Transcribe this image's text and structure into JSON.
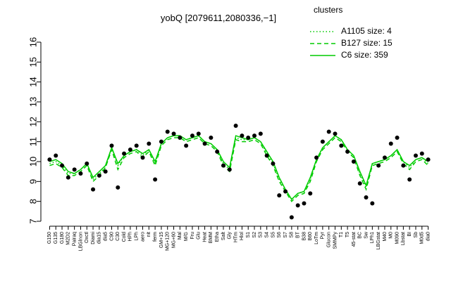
{
  "chart_data": {
    "type": "line",
    "title": "yobQ [2079611,2080336,−1]",
    "legend_title": "clusters",
    "color": "#00cc00",
    "point_color": "#000000",
    "categories": [
      "G150",
      "G135",
      "G180",
      "M2D2",
      "Pairaq",
      "LBGlnon",
      "Oxctl",
      "Diami",
      "dia15",
      "dia5",
      "C90",
      "C30",
      "Cold",
      "HPh",
      "LPh",
      "aero",
      "nit",
      "ferm",
      "GM+15",
      "MG+120",
      "MG+60",
      "Mal",
      "M/G",
      "Fru",
      "Glu",
      "Heat",
      "BMM",
      "Etha",
      "Salt",
      "Gly",
      "HTm",
      "Hlol",
      "S1",
      "S2",
      "S3",
      "S4",
      "S5",
      "S6",
      "S7",
      "S8",
      "BT",
      "B38",
      "B60",
      "LoTm",
      "Pyr",
      "Glucon",
      "SMMPy",
      "T1",
      "T5",
      "45-stat",
      "BC",
      "Sw",
      "LPh1",
      "LBGstat",
      "M40",
      "M0",
      "M090",
      "Lbstat",
      "BI",
      "Sb",
      "M0d5",
      "dia0"
    ],
    "series": [
      {
        "name": "A1105 size: 4",
        "dash": "dotted",
        "values": [
          9.9,
          10.0,
          9.8,
          9.4,
          9.4,
          9.6,
          9.9,
          9.1,
          9.4,
          9.7,
          10.7,
          9.8,
          10.3,
          10.5,
          10.6,
          10.3,
          10.6,
          9.9,
          10.9,
          11.2,
          11.3,
          11.3,
          11.1,
          11.2,
          11.3,
          11.0,
          10.9,
          10.6,
          9.9,
          9.6,
          11.2,
          11.1,
          11.1,
          11.2,
          11.0,
          10.4,
          9.9,
          9.1,
          8.6,
          8.1,
          8.4,
          8.5,
          9.1,
          10.1,
          10.7,
          11.0,
          11.3,
          11.1,
          10.6,
          10.3,
          9.4,
          8.7,
          9.9,
          10.0,
          10.1,
          10.3,
          10.6,
          10.0,
          9.7,
          10.1,
          10.2,
          9.9
        ]
      },
      {
        "name": "B127 size: 15",
        "dash": "dashed",
        "values": [
          9.8,
          9.9,
          9.7,
          9.3,
          9.3,
          9.5,
          9.8,
          9.0,
          9.3,
          9.7,
          10.6,
          9.6,
          10.2,
          10.4,
          10.5,
          10.2,
          10.5,
          9.8,
          10.8,
          11.1,
          11.2,
          11.2,
          11.0,
          11.1,
          11.2,
          10.9,
          10.8,
          10.5,
          9.8,
          9.5,
          11.1,
          11.0,
          11.0,
          11.1,
          10.9,
          10.3,
          9.8,
          9.0,
          8.5,
          8.0,
          8.3,
          8.4,
          9.0,
          10.0,
          10.6,
          10.9,
          11.2,
          11.0,
          10.5,
          10.2,
          9.3,
          8.6,
          9.8,
          9.9,
          10.0,
          10.2,
          10.5,
          9.9,
          9.6,
          10.0,
          10.1,
          9.8
        ]
      },
      {
        "name": "C6 size: 359",
        "dash": "solid",
        "values": [
          10.0,
          10.1,
          9.9,
          9.5,
          9.4,
          9.6,
          9.9,
          9.2,
          9.5,
          9.8,
          10.7,
          9.9,
          10.3,
          10.5,
          10.6,
          10.4,
          10.6,
          10.0,
          10.9,
          11.2,
          11.3,
          11.3,
          11.1,
          11.2,
          11.3,
          11.0,
          10.9,
          10.6,
          10.0,
          9.7,
          11.3,
          11.2,
          11.1,
          11.2,
          11.0,
          10.5,
          10.0,
          9.2,
          8.6,
          8.1,
          8.4,
          8.5,
          9.2,
          10.1,
          10.7,
          11.0,
          11.3,
          11.1,
          10.6,
          10.3,
          9.5,
          8.8,
          9.9,
          10.0,
          10.1,
          10.3,
          10.6,
          10.0,
          9.8,
          10.1,
          10.2,
          10.0
        ]
      }
    ],
    "points": [
      10.1,
      10.3,
      9.8,
      9.2,
      9.6,
      9.4,
      9.9,
      8.6,
      9.3,
      9.5,
      10.8,
      8.7,
      10.4,
      10.6,
      10.8,
      10.2,
      10.9,
      9.1,
      11.0,
      11.5,
      11.4,
      11.2,
      10.8,
      11.3,
      11.4,
      10.9,
      11.2,
      10.5,
      9.8,
      9.6,
      11.8,
      11.3,
      11.2,
      11.3,
      11.4,
      10.3,
      9.9,
      8.3,
      8.5,
      7.2,
      7.8,
      7.9,
      8.4,
      10.2,
      11.0,
      11.5,
      11.4,
      10.8,
      10.5,
      10.0,
      8.9,
      8.2,
      7.9,
      9.8,
      10.2,
      10.9,
      11.2,
      9.8,
      9.1,
      10.3,
      10.4,
      10.1
    ],
    "ylim": [
      7,
      16
    ],
    "yticks": [
      7,
      8,
      9,
      10,
      11,
      12,
      13,
      14,
      15,
      16
    ]
  }
}
